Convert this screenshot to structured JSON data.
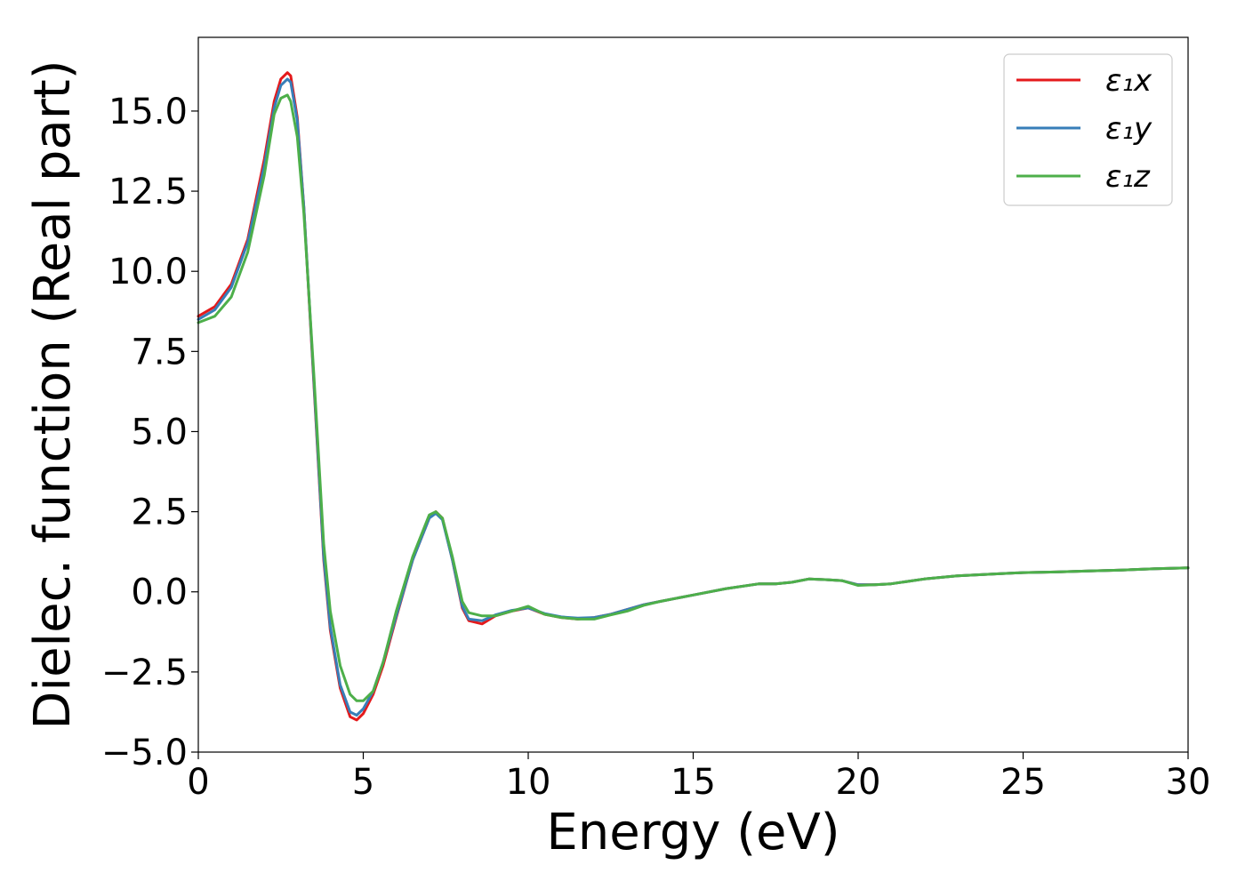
{
  "chart_data": {
    "type": "line",
    "xlabel": "Energy (eV)",
    "ylabel": "Dielec. function (Real part)",
    "xlim": [
      0,
      30
    ],
    "ylim": [
      -5.0,
      17.3
    ],
    "xticks": [
      0,
      5,
      10,
      15,
      20,
      25,
      30
    ],
    "xtick_labels": [
      "0",
      "5",
      "10",
      "15",
      "20",
      "25",
      "30"
    ],
    "yticks": [
      -5.0,
      -2.5,
      0.0,
      2.5,
      5.0,
      7.5,
      10.0,
      12.5,
      15.0
    ],
    "ytick_labels": [
      "−5.0",
      "−2.5",
      "0.0",
      "2.5",
      "5.0",
      "7.5",
      "10.0",
      "12.5",
      "15.0"
    ],
    "grid": false,
    "legend_position": "top-right",
    "series": [
      {
        "name": "ε₁x",
        "color": "#e41a1c",
        "x": [
          0,
          0.5,
          1.0,
          1.5,
          2.0,
          2.3,
          2.5,
          2.7,
          2.8,
          3.0,
          3.2,
          3.5,
          3.8,
          4.0,
          4.3,
          4.6,
          4.8,
          5.0,
          5.3,
          5.6,
          6.0,
          6.5,
          7.0,
          7.2,
          7.4,
          7.7,
          8.0,
          8.2,
          8.6,
          9.0,
          9.5,
          10.0,
          10.5,
          11.0,
          11.5,
          12.0,
          12.5,
          13.0,
          13.5,
          14.0,
          15.0,
          16.0,
          17.0,
          17.5,
          18.0,
          18.5,
          19.0,
          19.5,
          20.0,
          20.5,
          21.0,
          22.0,
          23.0,
          24.0,
          25.0,
          26.0,
          27.0,
          28.0,
          29.0,
          30.0
        ],
        "values": [
          8.6,
          8.9,
          9.6,
          11.0,
          13.5,
          15.3,
          16.0,
          16.2,
          16.1,
          14.8,
          12.0,
          6.5,
          1.0,
          -1.2,
          -3.0,
          -3.9,
          -4.0,
          -3.8,
          -3.2,
          -2.3,
          -0.8,
          1.0,
          2.3,
          2.5,
          2.3,
          1.0,
          -0.5,
          -0.9,
          -1.0,
          -0.75,
          -0.6,
          -0.5,
          -0.7,
          -0.8,
          -0.85,
          -0.8,
          -0.7,
          -0.55,
          -0.4,
          -0.3,
          -0.1,
          0.1,
          0.25,
          0.25,
          0.3,
          0.4,
          0.38,
          0.35,
          0.22,
          0.22,
          0.25,
          0.4,
          0.5,
          0.55,
          0.6,
          0.62,
          0.65,
          0.68,
          0.72,
          0.75
        ]
      },
      {
        "name": "ε₁y",
        "color": "#377eb8",
        "x": [
          0,
          0.5,
          1.0,
          1.5,
          2.0,
          2.3,
          2.5,
          2.7,
          2.8,
          3.0,
          3.2,
          3.5,
          3.8,
          4.0,
          4.3,
          4.6,
          4.8,
          5.0,
          5.3,
          5.6,
          6.0,
          6.5,
          7.0,
          7.2,
          7.4,
          7.7,
          8.0,
          8.2,
          8.6,
          9.0,
          9.5,
          10.0,
          10.5,
          11.0,
          11.5,
          12.0,
          12.5,
          13.0,
          13.5,
          14.0,
          15.0,
          16.0,
          17.0,
          17.5,
          18.0,
          18.5,
          19.0,
          19.5,
          20.0,
          20.5,
          21.0,
          22.0,
          23.0,
          24.0,
          25.0,
          26.0,
          27.0,
          28.0,
          29.0,
          30.0
        ],
        "values": [
          8.5,
          8.8,
          9.5,
          10.9,
          13.3,
          15.1,
          15.8,
          16.0,
          15.9,
          14.7,
          12.0,
          6.6,
          1.1,
          -1.1,
          -2.9,
          -3.75,
          -3.85,
          -3.65,
          -3.1,
          -2.2,
          -0.75,
          1.0,
          2.3,
          2.45,
          2.25,
          1.0,
          -0.45,
          -0.85,
          -0.9,
          -0.72,
          -0.58,
          -0.5,
          -0.68,
          -0.78,
          -0.82,
          -0.8,
          -0.7,
          -0.55,
          -0.4,
          -0.3,
          -0.1,
          0.1,
          0.25,
          0.25,
          0.3,
          0.4,
          0.38,
          0.35,
          0.22,
          0.22,
          0.25,
          0.4,
          0.5,
          0.55,
          0.6,
          0.62,
          0.65,
          0.68,
          0.72,
          0.75
        ]
      },
      {
        "name": "ε₁z",
        "color": "#4daf4a",
        "x": [
          0,
          0.5,
          1.0,
          1.5,
          2.0,
          2.3,
          2.5,
          2.7,
          2.8,
          3.0,
          3.2,
          3.5,
          3.8,
          4.0,
          4.3,
          4.6,
          4.8,
          5.0,
          5.3,
          5.6,
          6.0,
          6.5,
          7.0,
          7.2,
          7.4,
          7.7,
          8.0,
          8.2,
          8.6,
          9.0,
          9.5,
          10.0,
          10.5,
          11.0,
          11.5,
          12.0,
          12.5,
          13.0,
          13.5,
          14.0,
          15.0,
          16.0,
          17.0,
          17.5,
          18.0,
          18.5,
          19.0,
          19.5,
          20.0,
          20.5,
          21.0,
          22.0,
          23.0,
          24.0,
          25.0,
          26.0,
          27.0,
          28.0,
          29.0,
          30.0
        ],
        "values": [
          8.4,
          8.6,
          9.2,
          10.6,
          13.0,
          14.9,
          15.4,
          15.5,
          15.3,
          14.2,
          11.8,
          6.8,
          1.5,
          -0.6,
          -2.3,
          -3.2,
          -3.4,
          -3.4,
          -3.1,
          -2.2,
          -0.6,
          1.1,
          2.4,
          2.5,
          2.3,
          1.1,
          -0.3,
          -0.65,
          -0.75,
          -0.75,
          -0.6,
          -0.45,
          -0.7,
          -0.8,
          -0.85,
          -0.85,
          -0.72,
          -0.6,
          -0.42,
          -0.3,
          -0.1,
          0.1,
          0.25,
          0.25,
          0.3,
          0.4,
          0.38,
          0.35,
          0.2,
          0.22,
          0.25,
          0.4,
          0.5,
          0.55,
          0.6,
          0.62,
          0.65,
          0.68,
          0.72,
          0.75
        ]
      }
    ]
  }
}
